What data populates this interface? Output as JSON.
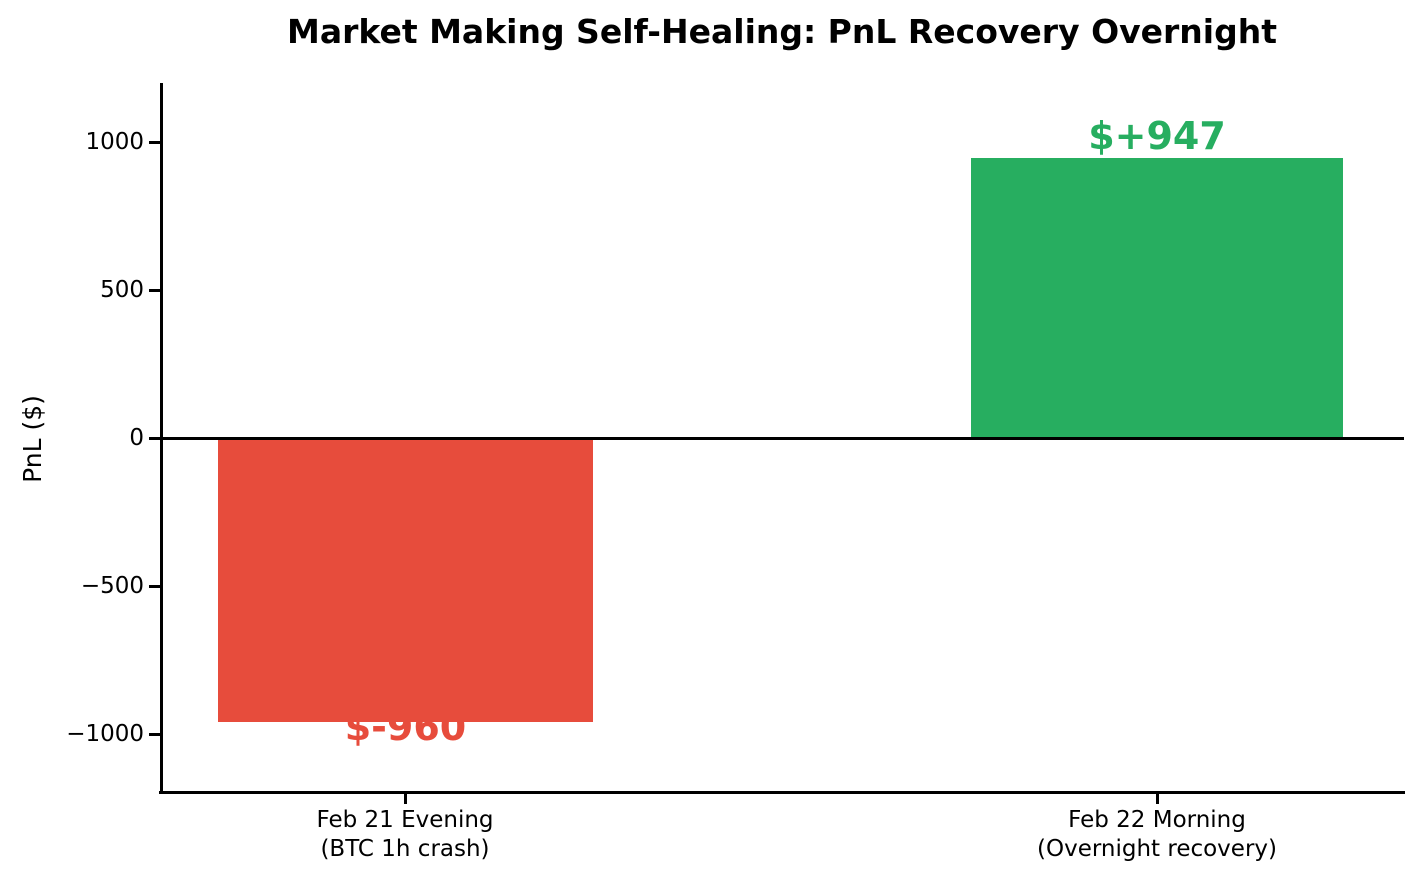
{
  "chart_data": {
    "type": "bar",
    "title": "Market Making Self-Healing: PnL Recovery Overnight",
    "xlabel": "",
    "ylabel": "PnL ($)",
    "ylim": [
      -1200,
      1200
    ],
    "grid": false,
    "legend": null,
    "background_color": "#ffffff",
    "axis_color": "#000000",
    "zero_line": true,
    "yticks": [
      1000,
      500,
      0,
      -500,
      -1000
    ],
    "ytick_labels": [
      "1000",
      "500",
      "0",
      "−500",
      "−1000"
    ],
    "categories": [
      "Feb 21 Evening (BTC 1h crash)",
      "Feb 22 Morning (Overnight recovery)"
    ],
    "values": [
      -960,
      947
    ],
    "bars": [
      {
        "category_line1": "Feb 21 Evening",
        "category_line2": "(BTC 1h crash)",
        "value": -960,
        "value_label": "$-960",
        "color": "#e74c3c"
      },
      {
        "category_line1": "Feb 22 Morning",
        "category_line2": "(Overnight recovery)",
        "value": 947,
        "value_label": "$+947",
        "color": "#27ae60"
      }
    ]
  }
}
